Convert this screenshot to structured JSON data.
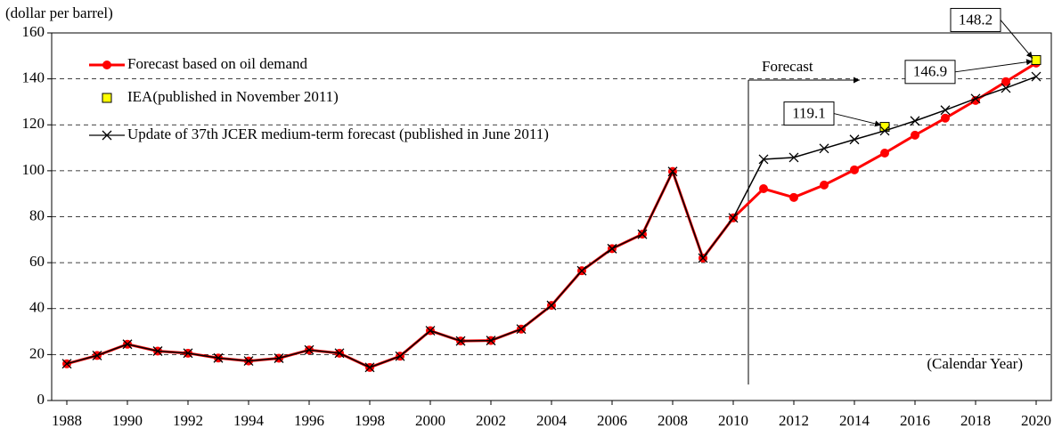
{
  "chart_data": {
    "type": "line",
    "y_label": "(dollar per barrel)",
    "x_label": "(Calendar Year)",
    "annotation": "Forecast",
    "x": [
      1988,
      1989,
      1990,
      1991,
      1992,
      1993,
      1994,
      1995,
      1996,
      1997,
      1998,
      1999,
      2000,
      2001,
      2002,
      2003,
      2004,
      2005,
      2006,
      2007,
      2008,
      2009,
      2010,
      2011,
      2012,
      2013,
      2014,
      2015,
      2016,
      2017,
      2018,
      2019,
      2020
    ],
    "series": [
      {
        "name": "Forecast based on oil demand",
        "color": "#ff0000",
        "marker": "circle",
        "values": [
          16,
          19.6,
          24.5,
          21.5,
          20.6,
          18.5,
          17.2,
          18.4,
          22,
          20.6,
          14.4,
          19.3,
          30.4,
          25.9,
          26.1,
          31.1,
          41.4,
          56.5,
          66.1,
          72.4,
          99.7,
          62,
          79.5,
          92.2,
          88.4,
          93.8,
          100.4,
          107.7,
          115.5,
          122.9,
          130.6,
          138.8,
          146.9
        ],
        "value_labels": [
          null,
          null,
          null,
          null,
          null,
          null,
          null,
          null,
          null,
          null,
          null,
          null,
          null,
          null,
          null,
          null,
          null,
          null,
          null,
          null,
          null,
          null,
          null,
          null,
          null,
          null,
          null,
          null,
          null,
          null,
          null,
          null,
          "146.9"
        ]
      },
      {
        "name": "IEA(published in November 2011)",
        "color": "#ffff00",
        "marker": "square",
        "values": [
          null,
          null,
          null,
          null,
          null,
          null,
          null,
          null,
          null,
          null,
          null,
          null,
          null,
          null,
          null,
          null,
          null,
          null,
          null,
          null,
          null,
          null,
          null,
          null,
          null,
          null,
          null,
          119.1,
          null,
          null,
          null,
          null,
          148.2
        ],
        "value_labels": [
          null,
          null,
          null,
          null,
          null,
          null,
          null,
          null,
          null,
          null,
          null,
          null,
          null,
          null,
          null,
          null,
          null,
          null,
          null,
          null,
          null,
          null,
          null,
          null,
          null,
          null,
          null,
          "119.1",
          null,
          null,
          null,
          null,
          "148.2"
        ]
      },
      {
        "name": "Update of 37th JCER medium-term forecast (published in June 2011)",
        "color": "#000000",
        "marker": "x",
        "values": [
          16,
          19.6,
          24.5,
          21.5,
          20.6,
          18.5,
          17.2,
          18.4,
          22,
          20.6,
          14.4,
          19.3,
          30.4,
          25.9,
          26.1,
          31.1,
          41.4,
          56.5,
          66.1,
          72.4,
          99.7,
          62,
          79.5,
          105,
          105.8,
          109.7,
          113.6,
          117.4,
          121.7,
          126.4,
          131.4,
          136,
          141
        ]
      }
    ],
    "xlim": [
      1987.5,
      2020.5
    ],
    "xticks": [
      1988,
      1990,
      1992,
      1994,
      1996,
      1998,
      2000,
      2002,
      2004,
      2006,
      2008,
      2010,
      2012,
      2014,
      2016,
      2018,
      2020
    ],
    "ylim": [
      0,
      160
    ],
    "yticks": [
      0,
      20,
      40,
      60,
      80,
      100,
      120,
      140,
      160
    ],
    "grid": true,
    "legend": "upper left"
  }
}
